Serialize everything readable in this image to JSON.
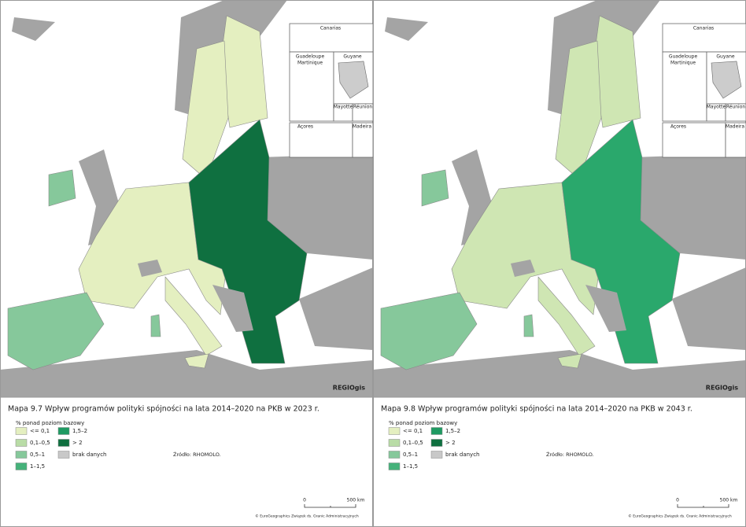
{
  "panels": [
    {
      "logo": "REGIOgis",
      "insets": [
        "Canarias",
        "Guadeloupe",
        "Martinique",
        "Guyane",
        "Mayotte",
        "Réunion",
        "Açores",
        "Madeira"
      ],
      "map_title": "Mapa 9.7 Wpływ programów polityki spójności na lata 2014–2020 na PKB w 2023 r.",
      "legend": {
        "title": "% ponad poziom bazowy",
        "items": [
          {
            "label": "<= 0,1",
            "color": "#e4efc0"
          },
          {
            "label": "0,1–0,5",
            "color": "#b9dca6"
          },
          {
            "label": "0,5–1",
            "color": "#86c89b"
          },
          {
            "label": "1–1,5",
            "color": "#45b27a"
          },
          {
            "label": "1,5–2",
            "color": "#1f9a62"
          },
          {
            "label": "> 2",
            "color": "#0f7040"
          },
          {
            "label": "brak danych",
            "color": "#c8c8c8"
          }
        ]
      },
      "source": "Źródło: RHOMOLO.",
      "scale": [
        "0",
        "500 km"
      ],
      "copyright": "© EuroGeographics Związek ds. Granic Administracyjnych"
    },
    {
      "logo": "REGIOgis",
      "insets": [
        "Canarias",
        "Guadeloupe",
        "Martinique",
        "Guyane",
        "Mayotte",
        "Réunion",
        "Açores",
        "Madeira"
      ],
      "map_title": "Mapa 9.8 Wpływ programów polityki spójności na lata 2014–2020 na PKB w 2043 r.",
      "legend": {
        "title": "% ponad poziom bazowy",
        "items": [
          {
            "label": "<= 0,1",
            "color": "#e4efc0"
          },
          {
            "label": "0,1–0,5",
            "color": "#b9dca6"
          },
          {
            "label": "0,5–1",
            "color": "#86c89b"
          },
          {
            "label": "1–1,5",
            "color": "#45b27a"
          },
          {
            "label": "1,5–2",
            "color": "#1f9a62"
          },
          {
            "label": "> 2",
            "color": "#0f7040"
          },
          {
            "label": "brak danych",
            "color": "#c8c8c8"
          }
        ]
      },
      "source": "Źródło: RHOMOLO.",
      "scale": [
        "0",
        "500 km"
      ],
      "copyright": "© EuroGeographics Związek ds. Granic Administracyjnych"
    }
  ]
}
